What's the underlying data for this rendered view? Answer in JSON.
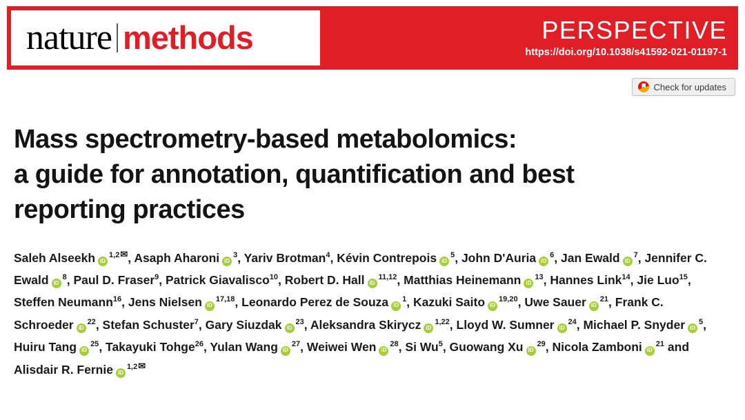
{
  "banner": {
    "logo": {
      "part1": "nature",
      "part2": "methods"
    },
    "article_type": "PERSPECTIVE",
    "doi": "https://doi.org/10.1038/s41592-021-01197-1",
    "colors": {
      "banner_red": "#e11e25",
      "logo_black": "#000000"
    }
  },
  "check_for_updates": {
    "label": "Check for updates"
  },
  "title_lines": [
    "Mass spectrometry-based metabolomics:",
    "a guide for annotation, quantification and best",
    "reporting practices"
  ],
  "icons": {
    "orcid": "iD",
    "envelope": "✉"
  },
  "joiners": {
    "default": ", ",
    "last": " and "
  },
  "colors": {
    "orcid_green": "#a6ce39",
    "title_text": "#141414"
  },
  "authors": [
    {
      "name": "Saleh Alseekh",
      "orcid": true,
      "sup": "1,2",
      "email": true
    },
    {
      "name": "Asaph Aharoni",
      "orcid": true,
      "sup": "3"
    },
    {
      "name": "Yariv Brotman",
      "orcid": false,
      "sup": "4"
    },
    {
      "name": "Kévin Contrepois",
      "orcid": true,
      "sup": "5"
    },
    {
      "name": "John D'Auria",
      "orcid": true,
      "sup": "6"
    },
    {
      "name": "Jan Ewald",
      "orcid": true,
      "sup": "7"
    },
    {
      "name": "Jennifer C. Ewald",
      "orcid": true,
      "sup": "8"
    },
    {
      "name": "Paul D. Fraser",
      "orcid": false,
      "sup": "9"
    },
    {
      "name": "Patrick Giavalisco",
      "orcid": false,
      "sup": "10"
    },
    {
      "name": "Robert D. Hall",
      "orcid": true,
      "sup": "11,12"
    },
    {
      "name": "Matthias Heinemann",
      "orcid": true,
      "sup": "13"
    },
    {
      "name": "Hannes Link",
      "orcid": false,
      "sup": "14"
    },
    {
      "name": "Jie Luo",
      "orcid": false,
      "sup": "15"
    },
    {
      "name": "Steffen Neumann",
      "orcid": false,
      "sup": "16"
    },
    {
      "name": "Jens Nielsen",
      "orcid": true,
      "sup": "17,18"
    },
    {
      "name": "Leonardo Perez de Souza",
      "orcid": true,
      "sup": "1"
    },
    {
      "name": "Kazuki Saito",
      "orcid": true,
      "sup": "19,20"
    },
    {
      "name": "Uwe Sauer",
      "orcid": true,
      "sup": "21"
    },
    {
      "name": "Frank C. Schroeder",
      "orcid": true,
      "sup": "22"
    },
    {
      "name": "Stefan Schuster",
      "orcid": false,
      "sup": "7"
    },
    {
      "name": "Gary Siuzdak",
      "orcid": true,
      "sup": "23"
    },
    {
      "name": "Aleksandra Skirycz",
      "orcid": true,
      "sup": "1,22"
    },
    {
      "name": "Lloyd W. Sumner",
      "orcid": true,
      "sup": "24"
    },
    {
      "name": "Michael P. Snyder",
      "orcid": true,
      "sup": "5"
    },
    {
      "name": "Huiru Tang",
      "orcid": true,
      "sup": "25"
    },
    {
      "name": "Takayuki Tohge",
      "orcid": false,
      "sup": "26"
    },
    {
      "name": "Yulan Wang",
      "orcid": true,
      "sup": "27"
    },
    {
      "name": "Weiwei Wen",
      "orcid": true,
      "sup": "28"
    },
    {
      "name": "Si Wu",
      "orcid": false,
      "sup": "5"
    },
    {
      "name": "Guowang Xu",
      "orcid": true,
      "sup": "29"
    },
    {
      "name": "Nicola Zamboni",
      "orcid": true,
      "sup": "21"
    },
    {
      "name": "Alisdair R. Fernie",
      "orcid": true,
      "sup": "1,2",
      "email": true
    }
  ]
}
